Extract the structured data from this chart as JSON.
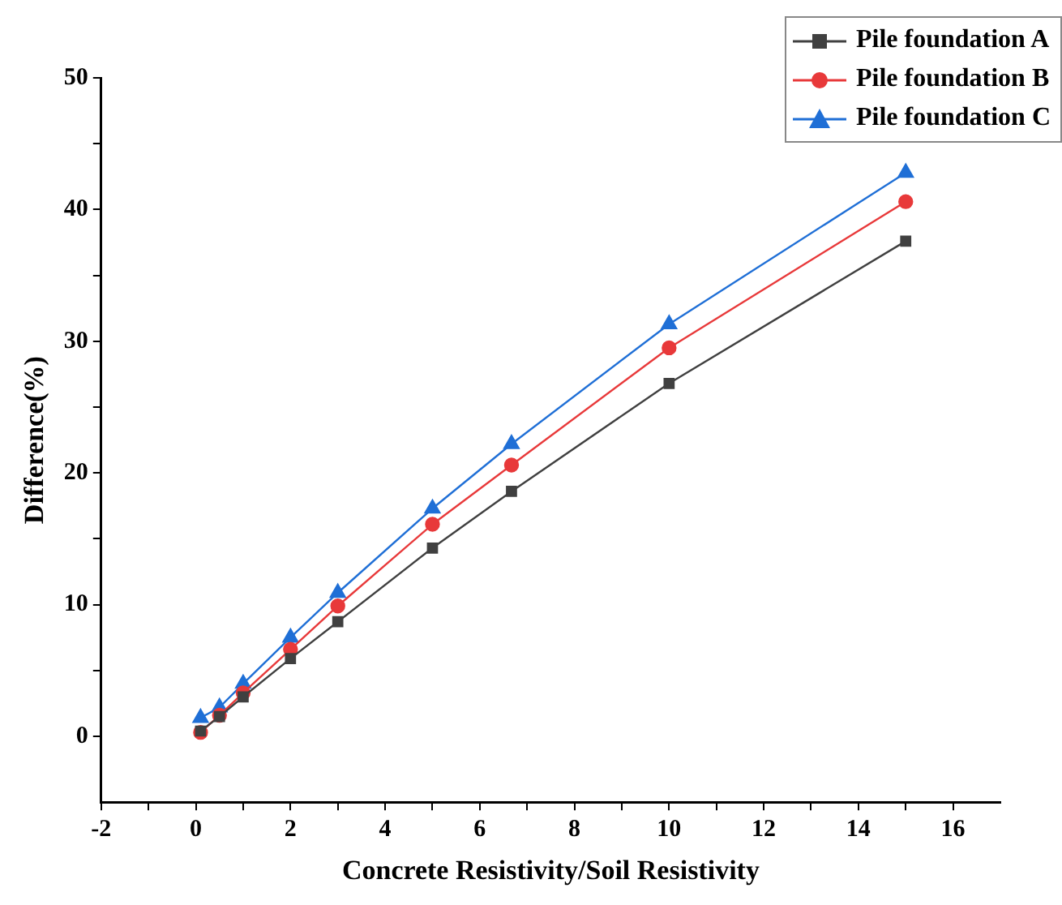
{
  "chart_data": {
    "type": "line",
    "xlabel": "Concrete Resistivity/Soil Resistivity",
    "ylabel": "Difference(%)",
    "xlim": [
      -2,
      17
    ],
    "xticks": [
      -2,
      {
        "value": -1,
        "label": null
      },
      0,
      {
        "value": 1,
        "label": null
      },
      2,
      {
        "value": 3,
        "label": null
      },
      4,
      {
        "value": 5,
        "label": null
      },
      6,
      {
        "value": 7,
        "label": null
      },
      8,
      {
        "value": 9,
        "label": null
      },
      10,
      {
        "value": 11,
        "label": null
      },
      12,
      {
        "value": 13,
        "label": null
      },
      14,
      {
        "value": 15,
        "label": null
      },
      16
    ],
    "ylim": [
      -5,
      50
    ],
    "yticks": [
      0,
      {
        "value": 5,
        "label": null
      },
      10,
      {
        "value": 15,
        "label": null
      },
      20,
      {
        "value": 25,
        "label": null
      },
      30,
      {
        "value": 35,
        "label": null
      },
      40,
      {
        "value": 45,
        "label": null
      },
      50
    ],
    "x": [
      0.1,
      0.5,
      1,
      2,
      3,
      5,
      6.67,
      10,
      15
    ],
    "legend": "top right",
    "grid": false,
    "series": [
      {
        "name": "Pile foundation A",
        "color": "#404040",
        "marker": "square",
        "values": [
          0.4,
          1.5,
          3.0,
          5.9,
          8.7,
          14.3,
          18.6,
          26.8,
          37.6
        ]
      },
      {
        "name": "Pile foundation B",
        "color": "#e8393a",
        "marker": "circle",
        "values": [
          0.3,
          1.6,
          3.3,
          6.6,
          9.9,
          16.1,
          20.6,
          29.5,
          40.6
        ]
      },
      {
        "name": "Pile foundation C",
        "color": "#1f6fd6",
        "marker": "triangle",
        "values": [
          1.4,
          2.2,
          4.0,
          7.5,
          10.9,
          17.3,
          22.2,
          31.3,
          42.8
        ]
      }
    ]
  }
}
